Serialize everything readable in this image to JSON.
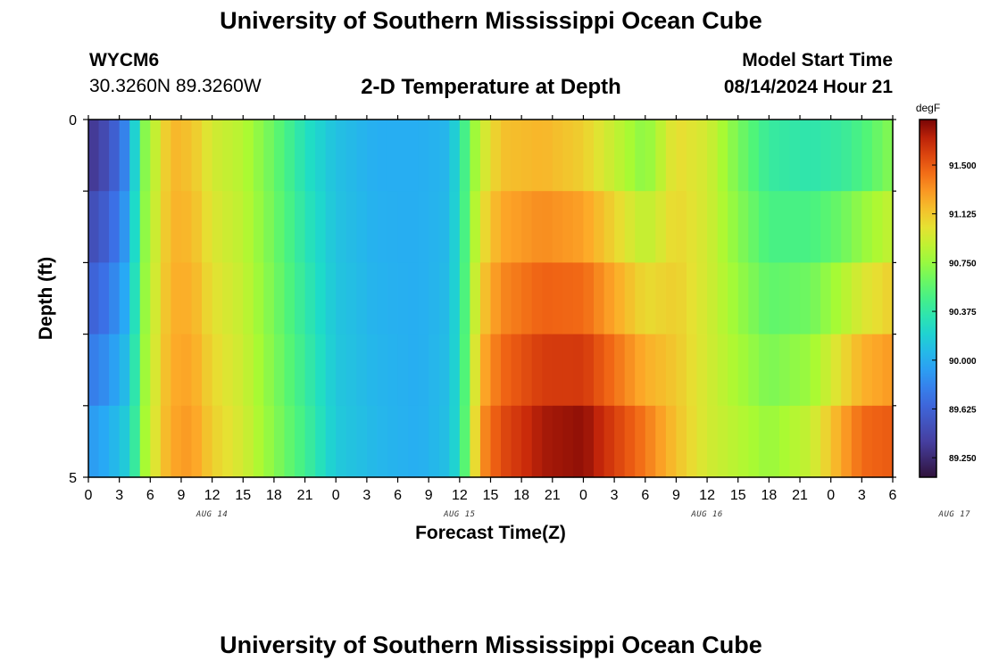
{
  "page": {
    "title_top": "University of Southern Mississippi Ocean Cube",
    "title_bottom": "University of Southern Mississippi Ocean Cube",
    "station_id": "WYCM6",
    "station_coords": "30.3260N  89.3260W",
    "product_title": "2-D Temperature at Depth",
    "model_label": "Model Start Time",
    "model_time": "08/14/2024 Hour 21"
  },
  "chart_data": {
    "type": "heatmap",
    "title": "2-D Temperature at Depth",
    "xlabel": "Forecast Time(Z)",
    "ylabel": "Depth (ft)",
    "x_tick_labels": [
      "0",
      "3",
      "6",
      "9",
      "12",
      "15",
      "18",
      "21",
      "0",
      "3",
      "6",
      "9",
      "12",
      "15",
      "18",
      "21",
      "0",
      "3",
      "6",
      "9",
      "12",
      "15",
      "18",
      "21",
      "0",
      "3",
      "6"
    ],
    "day_labels": [
      {
        "text": "AUG 14",
        "hour": 12
      },
      {
        "text": "AUG 15",
        "hour": 36
      },
      {
        "text": "AUG 16",
        "hour": 60
      },
      {
        "text": "AUG 17",
        "hour": 84
      }
    ],
    "y_tick_labels": [
      "0",
      "5"
    ],
    "ylim": [
      0,
      5
    ],
    "xlim": [
      0,
      78
    ],
    "depths": [
      0,
      1,
      2,
      3,
      4,
      5
    ],
    "colorbar": {
      "unit": "degF",
      "min": 89.1,
      "max": 91.85,
      "tick_values": [
        89.25,
        89.625,
        90.0,
        90.375,
        90.75,
        91.125,
        91.5
      ],
      "tick_labels": [
        "89.250",
        "89.625",
        "90.000",
        "90.375",
        "90.750",
        "91.125",
        "91.500"
      ]
    },
    "profiles": {
      "hours": [
        0,
        2,
        3.5,
        4.5,
        5.5,
        7,
        8,
        10,
        12,
        15,
        18,
        21,
        24,
        28,
        32,
        35,
        36,
        37,
        38,
        40,
        44,
        48,
        51,
        54,
        57,
        60,
        63,
        66,
        70,
        73,
        75,
        78
      ],
      "surface": [
        89.3,
        89.5,
        89.8,
        90.2,
        90.7,
        91.0,
        91.2,
        91.15,
        90.95,
        90.85,
        90.6,
        90.3,
        90.1,
        90.0,
        90.0,
        90.05,
        90.3,
        90.65,
        90.9,
        91.15,
        91.2,
        91.1,
        90.9,
        90.7,
        91.05,
        90.95,
        90.65,
        90.4,
        90.35,
        90.4,
        90.5,
        90.7
      ],
      "bottom": [
        89.9,
        90.0,
        90.15,
        90.4,
        90.8,
        91.1,
        91.25,
        91.3,
        91.1,
        90.95,
        90.7,
        90.45,
        90.15,
        90.05,
        90.0,
        90.1,
        90.3,
        90.8,
        91.3,
        91.55,
        91.75,
        91.8,
        91.6,
        91.4,
        91.15,
        90.95,
        90.85,
        90.75,
        90.9,
        91.25,
        91.45,
        91.5
      ]
    }
  }
}
